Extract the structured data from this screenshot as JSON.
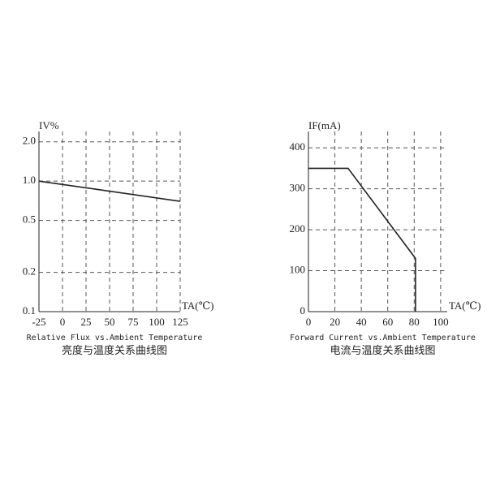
{
  "chart_data": [
    {
      "type": "line",
      "ylabel": "IV%",
      "xlabel": "TA(℃)",
      "caption": "Relative Flux vs.Ambient Temperature",
      "caption_cn": "亮度与温度关系曲线图",
      "log_y": true,
      "grid": true,
      "xlim": [
        -25,
        125
      ],
      "xticks": [
        -25,
        0,
        25,
        50,
        75,
        100,
        125
      ],
      "ylim": [
        0.1,
        2.4
      ],
      "yticks": [
        0.1,
        0.2,
        0.5,
        {
          "value": 1,
          "label": "1.0"
        },
        {
          "value": 2,
          "label": "2.0"
        }
      ],
      "series": [
        {
          "color": "#222222",
          "x": [
            -25,
            125
          ],
          "values": [
            1.0,
            0.7
          ]
        }
      ]
    },
    {
      "type": "line",
      "ylabel": "IF(mA)",
      "xlabel": "TA(℃)",
      "caption": "Forward Current vs.Ambient Temperature",
      "caption_cn": "电流与温度关系曲线图",
      "log_y": false,
      "grid": true,
      "xlim": [
        0,
        105
      ],
      "xticks": [
        0,
        20,
        40,
        60,
        80,
        100
      ],
      "ylim": [
        0,
        440
      ],
      "yticks": [
        0,
        100,
        200,
        300,
        400
      ],
      "series": [
        {
          "color": "#222222",
          "x": [
            0,
            30,
            81,
            81
          ],
          "values": [
            350,
            350,
            130,
            0
          ]
        }
      ]
    }
  ]
}
